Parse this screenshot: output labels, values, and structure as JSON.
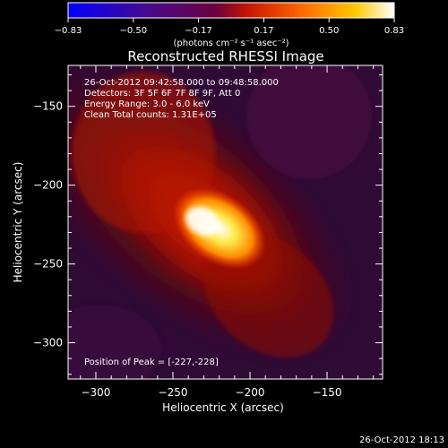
{
  "chart_data": {
    "type": "heatmap",
    "title": "Reconstructed RHESSI Image",
    "xlabel": "Heliocentric X (arcsec)",
    "ylabel": "Heliocentric Y (arcsec)",
    "xlim": [
      -318,
      -114
    ],
    "ylim": [
      -323,
      -124
    ],
    "x_ticks": [
      -300,
      -250,
      -200,
      -150
    ],
    "y_ticks": [
      -150,
      -200,
      -250,
      -300
    ],
    "colorbar": {
      "colormap": "blue-purple-red-yellow-white",
      "ticks": [
        "-0.83",
        "-0.50",
        "-0.17",
        "0.17",
        "0.50",
        "0.83"
      ],
      "range": [
        -0.83,
        0.83
      ],
      "unit_label": "(photons cm⁻² s⁻¹ asec⁻²)"
    },
    "annotations": [
      "26-Oct-2012 09:42:58.000 to 09:48:58.000",
      "Detectors: 3F 5F 6F 7F 8F 9F, Att 0",
      "Energy Range: 3.0 - 6.0 keV",
      "Clean    Total counts: 1.31E+05"
    ],
    "peak_label": "Position of Peak = [-227,-228]",
    "peak": {
      "x": -227,
      "y": -228
    },
    "footer_timestamp": "26-Oct-2012 18:13"
  }
}
